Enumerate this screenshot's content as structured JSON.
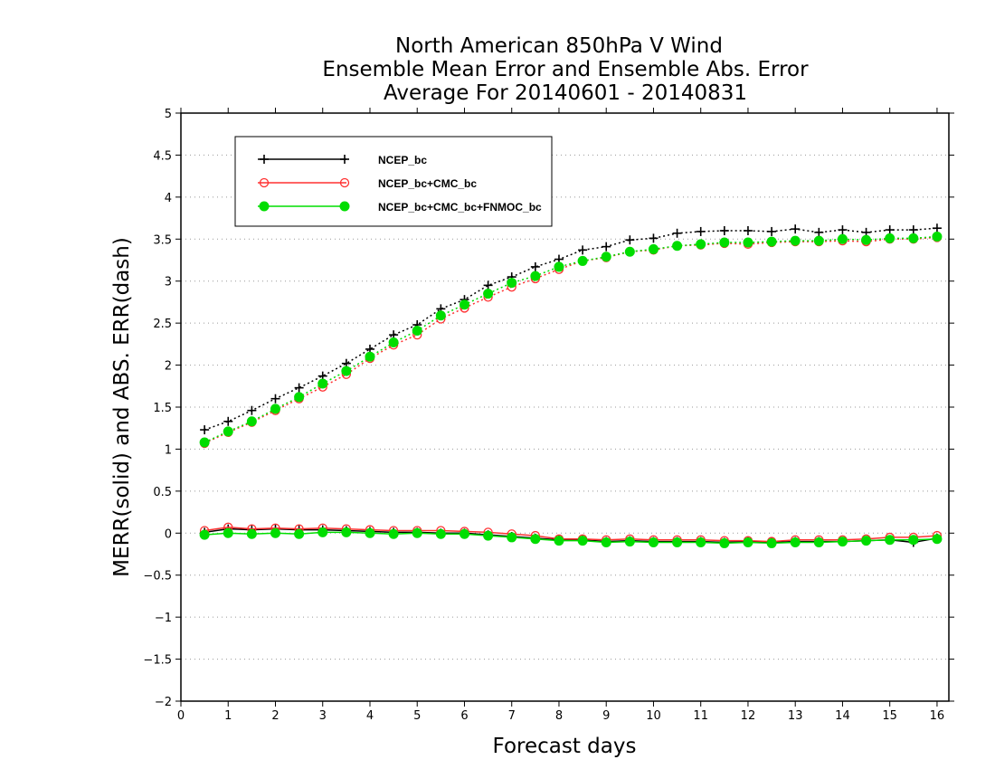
{
  "chart_data": {
    "type": "line",
    "title_lines": [
      "North American 850hPa V Wind",
      "Ensemble Mean Error and Ensemble Abs. Error",
      "Average For 20140601 - 20140831"
    ],
    "xlabel": "Forecast days",
    "ylabel": "MERR(solid) and ABS. ERR(dash)",
    "xlim": [
      0,
      16.25
    ],
    "ylim": [
      -2,
      5
    ],
    "x_ticks": [
      0,
      1,
      2,
      3,
      4,
      5,
      6,
      7,
      8,
      9,
      10,
      11,
      12,
      13,
      14,
      15,
      16
    ],
    "y_ticks": [
      -2,
      -1.5,
      -1,
      -0.5,
      0,
      0.5,
      1,
      1.5,
      2,
      2.5,
      3,
      3.5,
      4,
      4.5,
      5
    ],
    "grid": "horizontal dotted",
    "legend_position": "top-left",
    "x": [
      0.5,
      1,
      1.5,
      2,
      2.5,
      3,
      3.5,
      4,
      4.5,
      5,
      5.5,
      6,
      6.5,
      7,
      7.5,
      8,
      8.5,
      9,
      9.5,
      10,
      10.5,
      11,
      11.5,
      12,
      12.5,
      13,
      13.5,
      14,
      14.5,
      15,
      15.5,
      16
    ],
    "series": [
      {
        "name": "NCEP_bc",
        "color": "#000000",
        "marker": "plus",
        "abs_err": [
          1.23,
          1.33,
          1.46,
          1.6,
          1.73,
          1.87,
          2.02,
          2.19,
          2.36,
          2.48,
          2.67,
          2.78,
          2.95,
          3.05,
          3.17,
          3.26,
          3.37,
          3.41,
          3.49,
          3.51,
          3.57,
          3.59,
          3.6,
          3.6,
          3.59,
          3.62,
          3.58,
          3.61,
          3.58,
          3.61,
          3.61,
          3.63
        ],
        "mean_err": [
          0.01,
          0.05,
          0.04,
          0.05,
          0.04,
          0.04,
          0.03,
          0.02,
          0.01,
          0.01,
          0.0,
          0.0,
          -0.02,
          -0.04,
          -0.06,
          -0.08,
          -0.08,
          -0.1,
          -0.09,
          -0.1,
          -0.1,
          -0.1,
          -0.11,
          -0.1,
          -0.11,
          -0.1,
          -0.1,
          -0.1,
          -0.09,
          -0.08,
          -0.11,
          -0.06
        ]
      },
      {
        "name": "NCEP_bc+CMC_bc",
        "color": "#ff3030",
        "marker": "open-circle",
        "abs_err": [
          1.07,
          1.2,
          1.32,
          1.46,
          1.6,
          1.74,
          1.89,
          2.08,
          2.24,
          2.36,
          2.55,
          2.68,
          2.81,
          2.93,
          3.03,
          3.14,
          3.24,
          3.28,
          3.35,
          3.37,
          3.42,
          3.43,
          3.45,
          3.44,
          3.46,
          3.47,
          3.47,
          3.48,
          3.47,
          3.5,
          3.5,
          3.52
        ],
        "mean_err": [
          0.03,
          0.07,
          0.05,
          0.06,
          0.05,
          0.06,
          0.05,
          0.04,
          0.03,
          0.03,
          0.03,
          0.02,
          0.01,
          -0.01,
          -0.03,
          -0.07,
          -0.07,
          -0.08,
          -0.07,
          -0.08,
          -0.08,
          -0.08,
          -0.09,
          -0.09,
          -0.1,
          -0.08,
          -0.08,
          -0.08,
          -0.07,
          -0.05,
          -0.05,
          -0.03
        ]
      },
      {
        "name": "NCEP_bc+CMC_bc+FNMOC_bc",
        "color": "#00dd00",
        "marker": "filled-circle",
        "abs_err": [
          1.08,
          1.21,
          1.33,
          1.48,
          1.62,
          1.78,
          1.93,
          2.1,
          2.27,
          2.41,
          2.59,
          2.72,
          2.85,
          2.98,
          3.06,
          3.17,
          3.24,
          3.29,
          3.35,
          3.38,
          3.42,
          3.44,
          3.46,
          3.46,
          3.47,
          3.48,
          3.48,
          3.5,
          3.49,
          3.51,
          3.51,
          3.53
        ],
        "mean_err": [
          -0.02,
          0.0,
          -0.01,
          0.0,
          -0.01,
          0.01,
          0.01,
          0.0,
          -0.01,
          0.0,
          -0.01,
          -0.01,
          -0.03,
          -0.05,
          -0.07,
          -0.09,
          -0.09,
          -0.11,
          -0.1,
          -0.11,
          -0.11,
          -0.11,
          -0.12,
          -0.11,
          -0.12,
          -0.11,
          -0.11,
          -0.1,
          -0.09,
          -0.08,
          -0.08,
          -0.07
        ]
      }
    ]
  }
}
